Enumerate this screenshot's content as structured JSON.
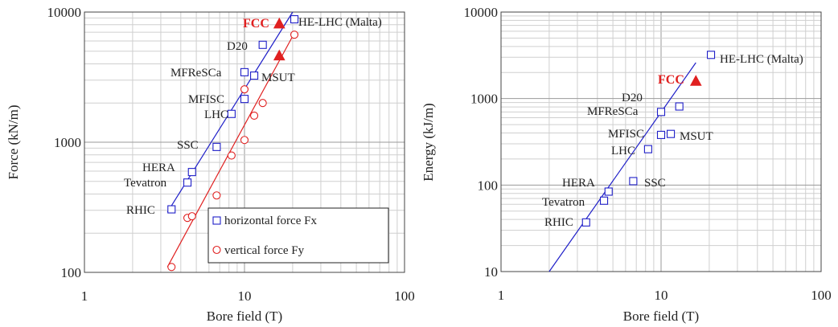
{
  "chart_data": [
    {
      "type": "scatter",
      "xlabel": "Bore field (T)",
      "ylabel": "Force (kN/m)",
      "xscale": "log",
      "yscale": "log",
      "xlim": [
        1,
        100
      ],
      "ylim": [
        100,
        10000
      ],
      "xticks": [
        "1",
        "10",
        "100"
      ],
      "yticks": [
        "100",
        "1000",
        "10000"
      ],
      "grid": true,
      "legend_position": "bottom-right",
      "series": [
        {
          "name": "horizontal force Fx",
          "marker": "square",
          "color": "#1f1fc8",
          "points": [
            {
              "label": "RHIC",
              "x": 3.5,
              "y": 305
            },
            {
              "label": "Tevatron",
              "x": 4.4,
              "y": 490
            },
            {
              "label": "HERA",
              "x": 4.7,
              "y": 590
            },
            {
              "label": "SSC",
              "x": 6.7,
              "y": 920
            },
            {
              "label": "LHC",
              "x": 8.3,
              "y": 1650
            },
            {
              "label": "MFISC",
              "x": 10.0,
              "y": 2150
            },
            {
              "label": "MFReSCa",
              "x": 10.0,
              "y": 3450
            },
            {
              "label": "MSUT",
              "x": 11.5,
              "y": 3250
            },
            {
              "label": "D20",
              "x": 13.0,
              "y": 5600
            },
            {
              "label": "HE-LHC (Malta)",
              "x": 20.5,
              "y": 8800
            }
          ],
          "fit_line": {
            "x": [
              3.3,
              20.0
            ],
            "y": [
              290,
              10000
            ]
          }
        },
        {
          "name": "vertical force Fy",
          "marker": "circle",
          "color": "#e02020",
          "points": [
            {
              "x": 3.5,
              "y": 110
            },
            {
              "x": 4.4,
              "y": 262
            },
            {
              "x": 4.7,
              "y": 270
            },
            {
              "x": 6.7,
              "y": 390
            },
            {
              "x": 8.3,
              "y": 790
            },
            {
              "x": 10.0,
              "y": 1040
            },
            {
              "x": 10.0,
              "y": 2550
            },
            {
              "x": 11.5,
              "y": 1600
            },
            {
              "x": 13.0,
              "y": 2000
            },
            {
              "x": 20.5,
              "y": 6700
            }
          ],
          "fit_line": {
            "x": [
              3.3,
              20.5
            ],
            "y": [
              110,
              6900
            ]
          }
        },
        {
          "name": "FCC",
          "marker": "triangle",
          "color": "#e02020",
          "points": [
            {
              "x": 16.5,
              "y": 8100
            },
            {
              "x": 16.5,
              "y": 4600
            }
          ]
        }
      ],
      "annotations": [
        {
          "text": "FCC",
          "color": "#e02020",
          "bold": true
        },
        {
          "text": "HE-LHC (Malta)"
        },
        {
          "text": "D20"
        },
        {
          "text": "MFReSCa"
        },
        {
          "text": "MSUT"
        },
        {
          "text": "MFISC"
        },
        {
          "text": "LHC"
        },
        {
          "text": "SSC"
        },
        {
          "text": "HERA"
        },
        {
          "text": "Tevatron"
        },
        {
          "text": "RHIC"
        }
      ]
    },
    {
      "type": "scatter",
      "xlabel": "Bore field (T)",
      "ylabel": "Energy (kJ/m)",
      "xscale": "log",
      "yscale": "log",
      "xlim": [
        1,
        100
      ],
      "ylim": [
        10,
        10000
      ],
      "xticks": [
        "1",
        "10",
        "100"
      ],
      "yticks": [
        "10",
        "100",
        "1000",
        "10000"
      ],
      "grid": true,
      "series": [
        {
          "name": "",
          "marker": "square",
          "color": "#1f1fc8",
          "points": [
            {
              "label": "RHIC",
              "x": 3.4,
              "y": 37
            },
            {
              "label": "Tevatron",
              "x": 4.4,
              "y": 66
            },
            {
              "label": "HERA",
              "x": 4.7,
              "y": 84
            },
            {
              "label": "SSC",
              "x": 6.7,
              "y": 111
            },
            {
              "label": "LHC",
              "x": 8.3,
              "y": 260
            },
            {
              "label": "MFISC",
              "x": 10.0,
              "y": 380
            },
            {
              "label": "MSUT",
              "x": 11.5,
              "y": 390
            },
            {
              "label": "MFReSCa",
              "x": 10.0,
              "y": 700
            },
            {
              "label": "D20",
              "x": 13.0,
              "y": 810
            },
            {
              "label": "HE-LHC (Malta)",
              "x": 20.5,
              "y": 3200
            }
          ],
          "fit_line": {
            "x": [
              2.0,
              16.5
            ],
            "y": [
              10,
              2600
            ]
          }
        },
        {
          "name": "FCC",
          "marker": "triangle",
          "color": "#e02020",
          "points": [
            {
              "x": 16.5,
              "y": 1580
            }
          ]
        }
      ],
      "annotations": [
        {
          "text": "HE-LHC (Malta)"
        },
        {
          "text": "FCC",
          "color": "#e02020",
          "bold": true
        },
        {
          "text": "D20"
        },
        {
          "text": "MFReSCa"
        },
        {
          "text": "MFISC"
        },
        {
          "text": "MSUT"
        },
        {
          "text": "LHC"
        },
        {
          "text": "HERA"
        },
        {
          "text": "SSC"
        },
        {
          "text": "Tevatron"
        },
        {
          "text": "RHIC"
        }
      ]
    }
  ]
}
